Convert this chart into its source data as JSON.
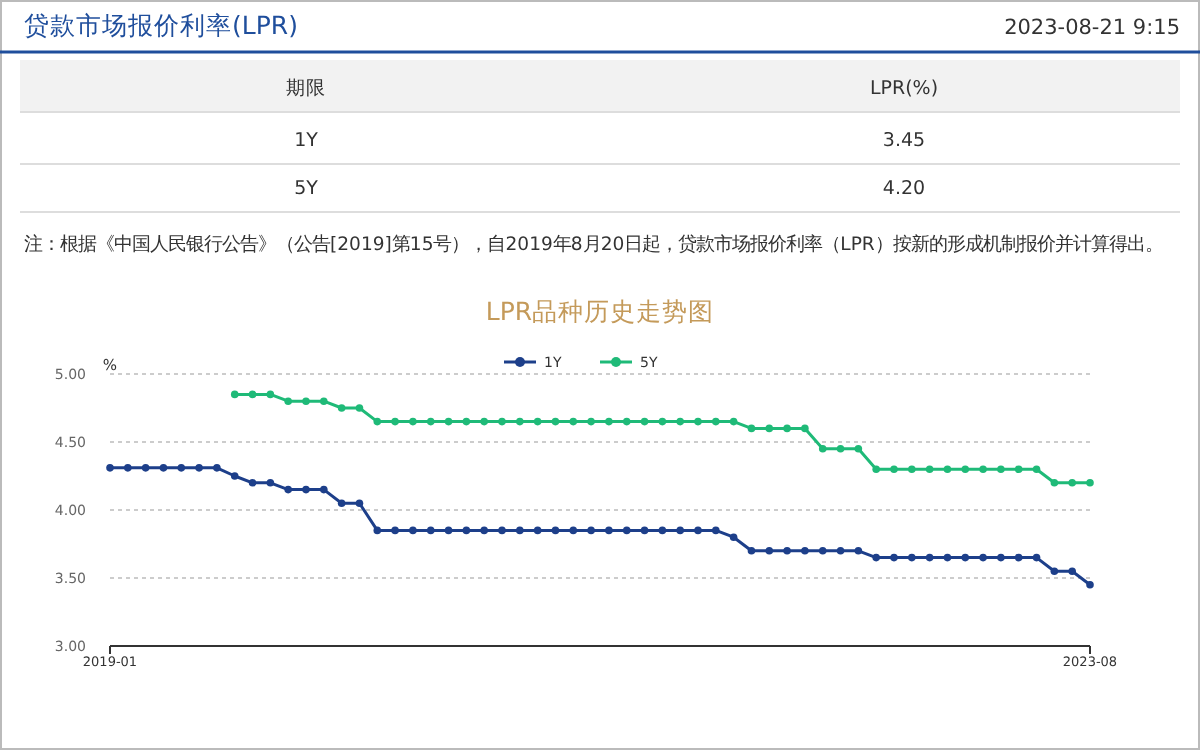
{
  "chart_data": [
    {
      "type": "other",
      "title": "贷款市场报价利率(LPR)",
      "subtitle": "2023-08-21 9:15",
      "annotations": [
        "期限",
        "LPR(%)",
        "1Y",
        "3.45",
        "5Y",
        "4.20",
        "注：根据《中国人民银行公告》（公告[2019]第15号），自2019年8月20日起，贷款市场报价利率（LPR）按新的形成机制报价并计算得出。"
      ]
    },
    {
      "type": "line",
      "title": "LPR品种历史走势图",
      "ylabel": "%",
      "categories": [
        "2019-01",
        null,
        null,
        null,
        null,
        null,
        null,
        null,
        null,
        null,
        null,
        null,
        null,
        null,
        null,
        null,
        null,
        null,
        null,
        null,
        null,
        null,
        null,
        null,
        null,
        null,
        null,
        null,
        null,
        null,
        null,
        null,
        null,
        null,
        null,
        null,
        null,
        null,
        null,
        null,
        null,
        null,
        null,
        null,
        null,
        null,
        null,
        null,
        null,
        null,
        null,
        null,
        null,
        null,
        null,
        "2023-08"
      ],
      "ylim": [
        3,
        5
      ],
      "yticks": [
        {
          "value": 3,
          "label": "3.00"
        },
        {
          "value": 3.5,
          "label": "3.50"
        },
        {
          "value": 4,
          "label": "4.00"
        },
        {
          "value": 4.5,
          "label": "4.50"
        },
        {
          "value": 5,
          "label": "5.00"
        }
      ],
      "grid": "y",
      "legend": "top",
      "marker": "circle",
      "line_style": "solid",
      "series": [
        {
          "name": "1Y",
          "color": "#1d3f8a",
          "values": [
            4.31,
            4.31,
            4.31,
            4.31,
            4.31,
            4.31,
            4.31,
            4.25,
            4.2,
            4.2,
            4.15,
            4.15,
            4.15,
            4.05,
            4.05,
            3.85,
            3.85,
            3.85,
            3.85,
            3.85,
            3.85,
            3.85,
            3.85,
            3.85,
            3.85,
            3.85,
            3.85,
            3.85,
            3.85,
            3.85,
            3.85,
            3.85,
            3.85,
            3.85,
            3.85,
            3.8,
            3.7,
            3.7,
            3.7,
            3.7,
            3.7,
            3.7,
            3.7,
            3.65,
            3.65,
            3.65,
            3.65,
            3.65,
            3.65,
            3.65,
            3.65,
            3.65,
            3.65,
            3.55,
            3.55,
            3.45
          ]
        },
        {
          "name": "5Y",
          "color": "#1fba78",
          "values": [
            null,
            null,
            null,
            null,
            null,
            null,
            null,
            4.85,
            4.85,
            4.85,
            4.8,
            4.8,
            4.8,
            4.75,
            4.75,
            4.65,
            4.65,
            4.65,
            4.65,
            4.65,
            4.65,
            4.65,
            4.65,
            4.65,
            4.65,
            4.65,
            4.65,
            4.65,
            4.65,
            4.65,
            4.65,
            4.65,
            4.65,
            4.65,
            4.65,
            4.65,
            4.6,
            4.6,
            4.6,
            4.6,
            4.45,
            4.45,
            4.45,
            4.3,
            4.3,
            4.3,
            4.3,
            4.3,
            4.3,
            4.3,
            4.3,
            4.3,
            4.3,
            4.2,
            4.2,
            4.2
          ]
        }
      ]
    }
  ]
}
